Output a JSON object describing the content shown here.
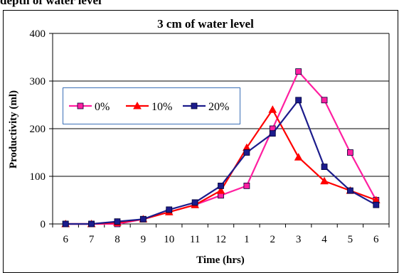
{
  "header": {
    "caption": "depth of water level"
  },
  "chart_data": {
    "type": "line",
    "title": "3 cm of water level",
    "xlabel": "Time (hrs)",
    "ylabel": "Productivity (ml)",
    "categories": [
      "6",
      "7",
      "8",
      "9",
      "10",
      "11",
      "12",
      "1",
      "2",
      "3",
      "4",
      "5",
      "6"
    ],
    "ylim": [
      0,
      400
    ],
    "yticks": [
      "0",
      "100",
      "200",
      "300",
      "400"
    ],
    "grid": "horizontal",
    "legend_position": "upper-left",
    "series": [
      {
        "name": "0%",
        "color": "#ff1fa0",
        "marker": "square",
        "values": [
          0,
          0,
          0,
          10,
          25,
          40,
          60,
          80,
          200,
          320,
          260,
          150,
          50
        ]
      },
      {
        "name": "10%",
        "color": "#ff0000",
        "marker": "triangle",
        "values": [
          0,
          0,
          3,
          10,
          25,
          40,
          70,
          160,
          240,
          140,
          90,
          70,
          50
        ]
      },
      {
        "name": "20%",
        "color": "#1c1c8c",
        "marker": "square",
        "values": [
          0,
          0,
          5,
          10,
          30,
          45,
          80,
          150,
          190,
          260,
          120,
          70,
          40
        ]
      }
    ]
  }
}
